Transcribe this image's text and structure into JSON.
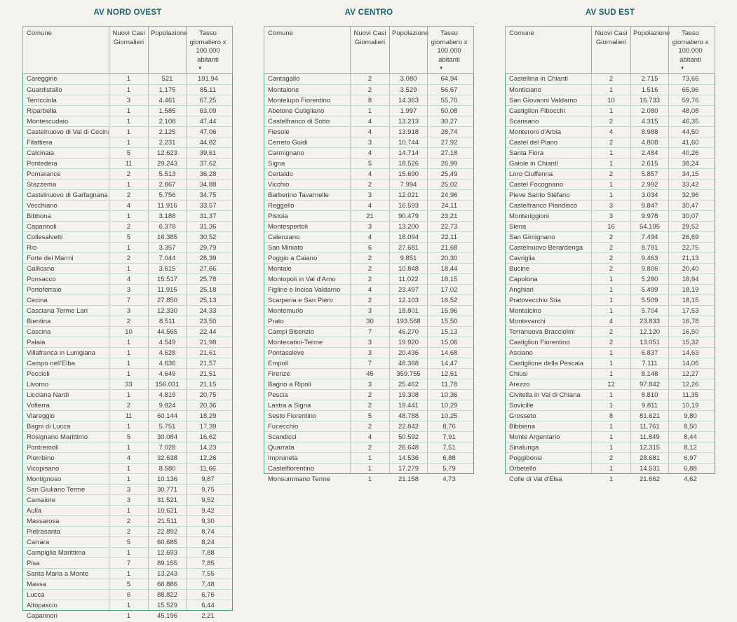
{
  "colors": {
    "background": "#f3f2ec",
    "title_text": "#1e6370",
    "body_text": "#3c3c3c",
    "viewport_border": "#4aa38e",
    "header_border": "#a9a9a9",
    "row_separator": "#bedccf",
    "column_separator": "#a5d0c2"
  },
  "column_headers": {
    "comune": "Comune",
    "nuovi_casi": "Nuovi Casi Giornalieri",
    "popolazione": "Popolazione",
    "tasso": "Tasso giornaliero x 100.000 abitanti"
  },
  "icons": {
    "sort_desc": "▼"
  },
  "tables": [
    {
      "title": "AV NORD OVEST",
      "rows": [
        [
          "Careggine",
          "1",
          "521",
          "191,94"
        ],
        [
          "Guardistallo",
          "1",
          "1.175",
          "85,11"
        ],
        [
          "Terricciola",
          "3",
          "4.461",
          "67,25"
        ],
        [
          "Riparbella",
          "1",
          "1.585",
          "63,09"
        ],
        [
          "Montescudaio",
          "1",
          "2.108",
          "47,44"
        ],
        [
          "Castelnuovo di Val di Cecina",
          "1",
          "2.125",
          "47,06"
        ],
        [
          "Filattiera",
          "1",
          "2.231",
          "44,82"
        ],
        [
          "Calcinaia",
          "5",
          "12.623",
          "39,61"
        ],
        [
          "Pontedera",
          "11",
          "29.243",
          "37,62"
        ],
        [
          "Pomarance",
          "2",
          "5.513",
          "36,28"
        ],
        [
          "Stazzema",
          "1",
          "2.867",
          "34,88"
        ],
        [
          "Castelnuovo di Garfagnana",
          "2",
          "5.756",
          "34,75"
        ],
        [
          "Vecchiano",
          "4",
          "11.916",
          "33,57"
        ],
        [
          "Bibbona",
          "1",
          "3.188",
          "31,37"
        ],
        [
          "Capannoli",
          "2",
          "6.378",
          "31,36"
        ],
        [
          "Collesalvetti",
          "5",
          "16.385",
          "30,52"
        ],
        [
          "Rio",
          "1",
          "3.357",
          "29,79"
        ],
        [
          "Forte dei Marmi",
          "2",
          "7.044",
          "28,39"
        ],
        [
          "Gallicano",
          "1",
          "3.615",
          "27,66"
        ],
        [
          "Ponsacco",
          "4",
          "15.517",
          "25,78"
        ],
        [
          "Portoferraio",
          "3",
          "11.915",
          "25,18"
        ],
        [
          "Cecina",
          "7",
          "27.850",
          "25,13"
        ],
        [
          "Casciana Terme Lari",
          "3",
          "12.330",
          "24,33"
        ],
        [
          "Bientina",
          "2",
          "8.511",
          "23,50"
        ],
        [
          "Cascina",
          "10",
          "44.565",
          "22,44"
        ],
        [
          "Palaia",
          "1",
          "4.549",
          "21,98"
        ],
        [
          "Villafranca in Lunigiana",
          "1",
          "4.628",
          "21,61"
        ],
        [
          "Campo nell'Elba",
          "1",
          "4.636",
          "21,57"
        ],
        [
          "Peccioli",
          "1",
          "4.649",
          "21,51"
        ],
        [
          "Livorno",
          "33",
          "156.031",
          "21,15"
        ],
        [
          "Licciana Nardi",
          "1",
          "4.819",
          "20,75"
        ],
        [
          "Volterra",
          "2",
          "9.824",
          "20,36"
        ],
        [
          "Viareggio",
          "11",
          "60.144",
          "18,29"
        ],
        [
          "Bagni di Lucca",
          "1",
          "5.751",
          "17,39"
        ],
        [
          "Rosignano Marittimo",
          "5",
          "30.084",
          "16,62"
        ],
        [
          "Pontremoli",
          "1",
          "7.028",
          "14,23"
        ],
        [
          "Piombino",
          "4",
          "32.638",
          "12,26"
        ],
        [
          "Vicopisano",
          "1",
          "8.580",
          "11,66"
        ],
        [
          "Montignoso",
          "1",
          "10.136",
          "9,87"
        ],
        [
          "San Giuliano Terme",
          "3",
          "30.771",
          "9,75"
        ],
        [
          "Camaiore",
          "3",
          "31.521",
          "9,52"
        ],
        [
          "Aulla",
          "1",
          "10.621",
          "9,42"
        ],
        [
          "Massarosa",
          "2",
          "21.511",
          "9,30"
        ],
        [
          "Pietrasanta",
          "2",
          "22.892",
          "8,74"
        ],
        [
          "Carrara",
          "5",
          "60.685",
          "8,24"
        ],
        [
          "Campiglia Marittima",
          "1",
          "12.693",
          "7,88"
        ],
        [
          "Pisa",
          "7",
          "89.155",
          "7,85"
        ],
        [
          "Santa Maria a Monte",
          "1",
          "13.243",
          "7,55"
        ],
        [
          "Massa",
          "5",
          "66.886",
          "7,48"
        ],
        [
          "Lucca",
          "6",
          "88.822",
          "6,76"
        ],
        [
          "Altopascio",
          "1",
          "15.529",
          "6,44"
        ]
      ],
      "overflow_rows": [
        [
          "Capannori",
          "1",
          "45.196",
          "2,21"
        ]
      ]
    },
    {
      "title": "AV CENTRO",
      "rows": [
        [
          "Cantagallo",
          "2",
          "3.080",
          "64,94"
        ],
        [
          "Montaione",
          "2",
          "3.529",
          "56,67"
        ],
        [
          "Montelupo Fiorentino",
          "8",
          "14.363",
          "55,70"
        ],
        [
          "Abetone Cutigliano",
          "1",
          "1.997",
          "50,08"
        ],
        [
          "Castelfranco di Sotto",
          "4",
          "13.213",
          "30,27"
        ],
        [
          "Fiesole",
          "4",
          "13.918",
          "28,74"
        ],
        [
          "Cerreto Guidi",
          "3",
          "10.744",
          "27,92"
        ],
        [
          "Carmignano",
          "4",
          "14.714",
          "27,18"
        ],
        [
          "Signa",
          "5",
          "18.526",
          "26,99"
        ],
        [
          "Certaldo",
          "4",
          "15.690",
          "25,49"
        ],
        [
          "Vicchio",
          "2",
          "7.994",
          "25,02"
        ],
        [
          "Barberino Tavarnelle",
          "3",
          "12.021",
          "24,96"
        ],
        [
          "Reggello",
          "4",
          "16.593",
          "24,11"
        ],
        [
          "Pistoia",
          "21",
          "90.479",
          "23,21"
        ],
        [
          "Montespertoli",
          "3",
          "13.200",
          "22,73"
        ],
        [
          "Calenzano",
          "4",
          "18.094",
          "22,11"
        ],
        [
          "San Miniato",
          "6",
          "27.681",
          "21,68"
        ],
        [
          "Poggio a Caiano",
          "2",
          "9.851",
          "20,30"
        ],
        [
          "Montale",
          "2",
          "10.848",
          "18,44"
        ],
        [
          "Montopoli in Val d'Arno",
          "2",
          "11.022",
          "18,15"
        ],
        [
          "Figline e Incisa Valdarno",
          "4",
          "23.497",
          "17,02"
        ],
        [
          "Scarperia e San Piero",
          "2",
          "12.103",
          "16,52"
        ],
        [
          "Montemurlo",
          "3",
          "18.801",
          "15,96"
        ],
        [
          "Prato",
          "30",
          "193.568",
          "15,50"
        ],
        [
          "Campi Bisenzio",
          "7",
          "46.270",
          "15,13"
        ],
        [
          "Montecatini-Terme",
          "3",
          "19.920",
          "15,06"
        ],
        [
          "Pontassieve",
          "3",
          "20.436",
          "14,68"
        ],
        [
          "Empoli",
          "7",
          "48.368",
          "14,47"
        ],
        [
          "Firenze",
          "45",
          "359.755",
          "12,51"
        ],
        [
          "Bagno a Ripoli",
          "3",
          "25.462",
          "11,78"
        ],
        [
          "Pescia",
          "2",
          "19.308",
          "10,36"
        ],
        [
          "Lastra a Signa",
          "2",
          "19.441",
          "10,29"
        ],
        [
          "Sesto Fiorentino",
          "5",
          "48.788",
          "10,25"
        ],
        [
          "Fucecchio",
          "2",
          "22.842",
          "8,76"
        ],
        [
          "Scandicci",
          "4",
          "50.592",
          "7,91"
        ],
        [
          "Quarrata",
          "2",
          "26.648",
          "7,51"
        ],
        [
          "Impruneta",
          "1",
          "14.536",
          "6,88"
        ],
        [
          "Castelfiorentino",
          "1",
          "17.279",
          "5,79"
        ]
      ],
      "overflow_rows": [
        [
          "Monsummano Terme",
          "1",
          "21.158",
          "4,73"
        ]
      ]
    },
    {
      "title": "AV SUD EST",
      "rows": [
        [
          "Castellina in Chianti",
          "2",
          "2.715",
          "73,66"
        ],
        [
          "Monticiano",
          "1",
          "1.516",
          "65,96"
        ],
        [
          "San Giovanni Valdarno",
          "10",
          "16.733",
          "59,76"
        ],
        [
          "Castiglion Fibocchi",
          "1",
          "2.080",
          "48,08"
        ],
        [
          "Scansano",
          "2",
          "4.315",
          "46,35"
        ],
        [
          "Monteroni d'Arbia",
          "4",
          "8.988",
          "44,50"
        ],
        [
          "Castel del Piano",
          "2",
          "4.808",
          "41,60"
        ],
        [
          "Santa Fiora",
          "1",
          "2.484",
          "40,26"
        ],
        [
          "Gaiole in Chianti",
          "1",
          "2.615",
          "38,24"
        ],
        [
          "Loro Ciuffenna",
          "2",
          "5.857",
          "34,15"
        ],
        [
          "Castel Focognano",
          "1",
          "2.992",
          "33,42"
        ],
        [
          "Pieve Santo Stefano",
          "1",
          "3.034",
          "32,96"
        ],
        [
          "Castelfranco Piandiscò",
          "3",
          "9.847",
          "30,47"
        ],
        [
          "Monteriggioni",
          "3",
          "9.978",
          "30,07"
        ],
        [
          "Siena",
          "16",
          "54.195",
          "29,52"
        ],
        [
          "San Gimignano",
          "2",
          "7.494",
          "26,69"
        ],
        [
          "Castelnuovo Berardenga",
          "2",
          "8.791",
          "22,75"
        ],
        [
          "Cavriglia",
          "2",
          "9.463",
          "21,13"
        ],
        [
          "Bucine",
          "2",
          "9.806",
          "20,40"
        ],
        [
          "Capolona",
          "1",
          "5.280",
          "18,94"
        ],
        [
          "Anghiari",
          "1",
          "5.499",
          "18,19"
        ],
        [
          "Pratovecchio Stia",
          "1",
          "5.509",
          "18,15"
        ],
        [
          "Montalcino",
          "1",
          "5.704",
          "17,53"
        ],
        [
          "Montevarchi",
          "4",
          "23.833",
          "16,78"
        ],
        [
          "Terranuova Bracciolini",
          "2",
          "12.120",
          "16,50"
        ],
        [
          "Castiglion Fiorentino",
          "2",
          "13.051",
          "15,32"
        ],
        [
          "Asciano",
          "1",
          "6.837",
          "14,63"
        ],
        [
          "Castiglione della Pescaia",
          "1",
          "7.111",
          "14,06"
        ],
        [
          "Chiusi",
          "1",
          "8.148",
          "12,27"
        ],
        [
          "Arezzo",
          "12",
          "97.842",
          "12,26"
        ],
        [
          "Civitella in Val di Chiana",
          "1",
          "8.810",
          "11,35"
        ],
        [
          "Sovicille",
          "1",
          "9.811",
          "10,19"
        ],
        [
          "Grosseto",
          "8",
          "81.621",
          "9,80"
        ],
        [
          "Bibbiena",
          "1",
          "11.761",
          "8,50"
        ],
        [
          "Monte Argentario",
          "1",
          "11.849",
          "8,44"
        ],
        [
          "Sinalunga",
          "1",
          "12.315",
          "8,12"
        ],
        [
          "Poggibonsi",
          "2",
          "28.681",
          "6,97"
        ],
        [
          "Orbetello",
          "1",
          "14.531",
          "6,88"
        ]
      ],
      "overflow_rows": [
        [
          "Colle di Val d'Elsa",
          "1",
          "21.662",
          "4,62"
        ]
      ]
    }
  ]
}
